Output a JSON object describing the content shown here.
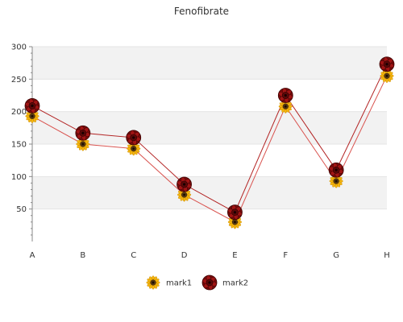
{
  "chart_data": {
    "type": "line",
    "title": "Fenofibrate",
    "xlabel": "",
    "ylabel": "",
    "categories": [
      "A",
      "B",
      "C",
      "D",
      "E",
      "F",
      "G",
      "H"
    ],
    "ylim": [
      0,
      300
    ],
    "yticks": [
      50,
      100,
      150,
      200,
      250,
      300
    ],
    "grid": "horizontal bands",
    "legend": "bottom-center",
    "series": [
      {
        "name": "mark1",
        "marker": "sunflower-icon",
        "line_color": "#d9534f",
        "values": [
          193,
          150,
          143,
          72,
          30,
          208,
          93,
          255
        ]
      },
      {
        "name": "mark2",
        "marker": "rose-icon",
        "line_color": "#b22222",
        "values": [
          209,
          167,
          160,
          88,
          45,
          225,
          110,
          273
        ]
      }
    ]
  },
  "colors": {
    "band": "#f2f2f2",
    "axis": "#888888",
    "line1": "#d9534f",
    "line2": "#b22222"
  }
}
